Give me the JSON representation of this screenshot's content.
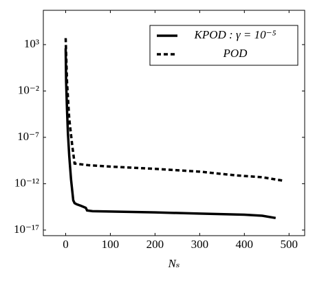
{
  "chart_data": {
    "type": "line",
    "x_label": "Nₛ",
    "log_y": true,
    "legend": "upper right",
    "xlim": [
      -50,
      535
    ],
    "xticks": [
      0,
      100,
      200,
      300,
      400,
      500
    ],
    "ylim": [
      2.5e-18,
      5000000.0
    ],
    "yticks": [
      {
        "value": 1000,
        "label": "10³"
      },
      {
        "value": 0.01,
        "label": "10⁻²"
      },
      {
        "value": 1e-07,
        "label": "10⁻⁷"
      },
      {
        "value": 1e-12,
        "label": "10⁻¹²"
      },
      {
        "value": 1e-17,
        "label": "10⁻¹⁷"
      }
    ],
    "series": [
      {
        "name": "KPOD : γ = 10⁻⁵",
        "color": "#000000",
        "style": "solid",
        "x": [
          0,
          1,
          3,
          5,
          8,
          12,
          17,
          20,
          25,
          35,
          45,
          48,
          60,
          100,
          200,
          300,
          400,
          440,
          470
        ],
        "values": [
          400,
          0.1,
          0.0001,
          3e-07,
          1e-09,
          3e-12,
          1.6e-14,
          8e-15,
          6e-15,
          4e-15,
          2.5e-15,
          1.3e-15,
          1.1e-15,
          1e-15,
          8e-16,
          6e-16,
          4.5e-16,
          3.5e-16,
          2e-16
        ]
      },
      {
        "name": "POD",
        "color": "#000000",
        "style": "dashed",
        "x": [
          0,
          3,
          8,
          15,
          20,
          50,
          100,
          200,
          300,
          380,
          440,
          490
        ],
        "values": [
          5000,
          0.1,
          1e-05,
          1e-08,
          1.5e-10,
          1e-10,
          7e-11,
          4e-11,
          2e-11,
          8e-12,
          5e-12,
          2e-12
        ]
      }
    ]
  }
}
